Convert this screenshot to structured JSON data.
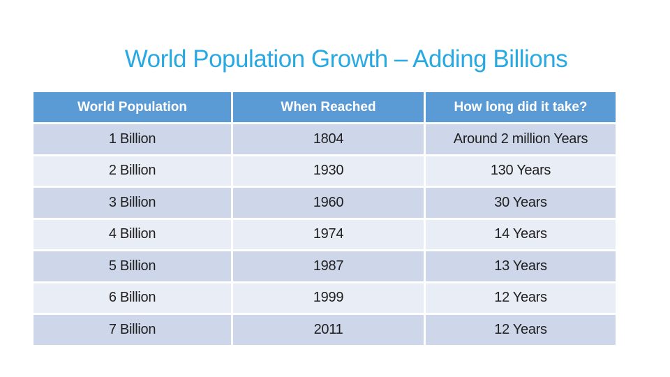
{
  "slide": {
    "title": "World Population Growth – Adding Billions",
    "colors": {
      "background": "#ffffff",
      "title": "#29a9e1",
      "header_bg": "#5b9bd5",
      "header_text": "#ffffff",
      "row_odd_bg": "#cdd7e9",
      "row_even_bg": "#e9edf5",
      "body_text": "#1f1f1f"
    },
    "table": {
      "headers": [
        "World Population",
        "When Reached",
        "How long did it take?"
      ],
      "rows": [
        [
          "1 Billion",
          "1804",
          "Around 2 million Years"
        ],
        [
          "2 Billion",
          "1930",
          "130 Years"
        ],
        [
          "3 Billion",
          "1960",
          "30 Years"
        ],
        [
          "4 Billion",
          "1974",
          "14 Years"
        ],
        [
          "5 Billion",
          "1987",
          "13 Years"
        ],
        [
          "6 Billion",
          "1999",
          "12 Years"
        ],
        [
          "7 Billion",
          "2011",
          "12 Years"
        ]
      ]
    }
  }
}
